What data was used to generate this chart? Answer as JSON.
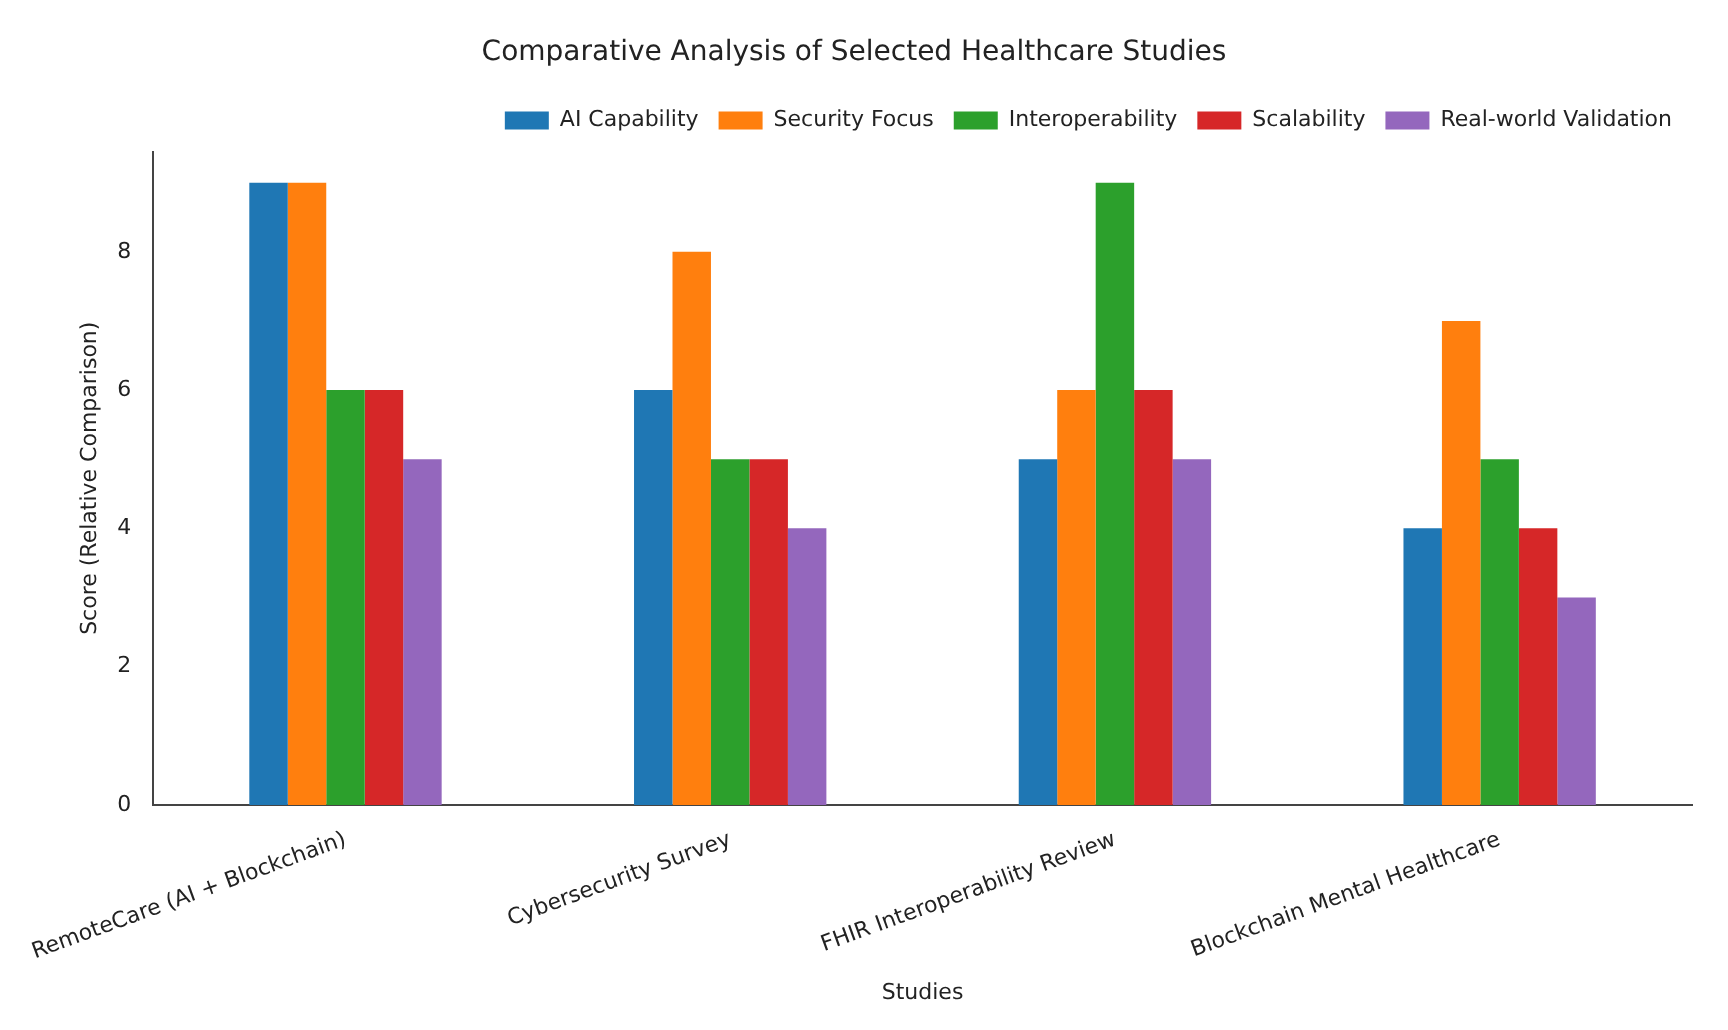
{
  "chart_data": {
    "type": "bar",
    "title": "Comparative Analysis of Selected Healthcare Studies",
    "xlabel": "Studies",
    "ylabel": "Score (Relative Comparison)",
    "categories": [
      "RemoteCare (AI + Blockchain)",
      "Cybersecurity Survey",
      "FHIR Interoperability Review",
      "Blockchain Mental Healthcare"
    ],
    "series": [
      {
        "name": "AI Capability",
        "color": "#1f77b4",
        "values": [
          9,
          6,
          5,
          4
        ]
      },
      {
        "name": "Security Focus",
        "color": "#ff7f0e",
        "values": [
          9,
          8,
          6,
          7
        ]
      },
      {
        "name": "Interoperability",
        "color": "#2ca02c",
        "values": [
          6,
          5,
          9,
          5
        ]
      },
      {
        "name": "Scalability",
        "color": "#d62728",
        "values": [
          6,
          5,
          6,
          4
        ]
      },
      {
        "name": "Real-world Validation",
        "color": "#9467bd",
        "values": [
          5,
          4,
          5,
          3
        ]
      }
    ],
    "ylim": [
      0,
      9.45
    ],
    "yticks": [
      0,
      2,
      4,
      6,
      8
    ],
    "grid": false,
    "legend": "top right"
  }
}
